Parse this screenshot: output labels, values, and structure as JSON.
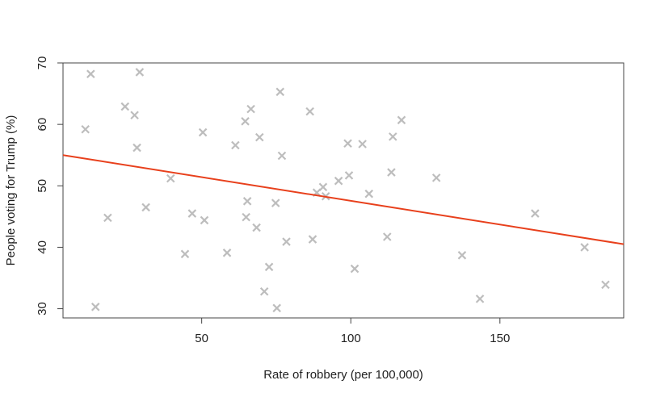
{
  "chart_data": {
    "type": "scatter",
    "xlabel": "Rate of robbery (per 100,000)",
    "ylabel": "People voting for Trump (%)",
    "xlim": [
      3.5,
      191.5
    ],
    "ylim": [
      28.5,
      70
    ],
    "x_ticks": [
      50,
      100,
      150
    ],
    "y_ticks": [
      30,
      40,
      50,
      60,
      70
    ],
    "grid": false,
    "marker": "x",
    "point_color": "#bdbdbd",
    "line_color": "#e8401c",
    "points": [
      {
        "x": 11.0,
        "y": 59.2
      },
      {
        "x": 12.8,
        "y": 68.2
      },
      {
        "x": 14.4,
        "y": 30.3
      },
      {
        "x": 18.5,
        "y": 44.8
      },
      {
        "x": 24.3,
        "y": 62.9
      },
      {
        "x": 27.5,
        "y": 61.5
      },
      {
        "x": 28.3,
        "y": 56.2
      },
      {
        "x": 29.2,
        "y": 68.5
      },
      {
        "x": 31.3,
        "y": 46.5
      },
      {
        "x": 39.6,
        "y": 51.2
      },
      {
        "x": 44.4,
        "y": 38.9
      },
      {
        "x": 46.8,
        "y": 45.5
      },
      {
        "x": 50.4,
        "y": 58.7
      },
      {
        "x": 50.9,
        "y": 44.4
      },
      {
        "x": 58.5,
        "y": 39.1
      },
      {
        "x": 61.3,
        "y": 56.6
      },
      {
        "x": 64.6,
        "y": 60.5
      },
      {
        "x": 64.9,
        "y": 44.9
      },
      {
        "x": 65.3,
        "y": 47.5
      },
      {
        "x": 66.5,
        "y": 62.5
      },
      {
        "x": 68.4,
        "y": 43.2
      },
      {
        "x": 69.4,
        "y": 57.9
      },
      {
        "x": 71.0,
        "y": 32.8
      },
      {
        "x": 72.6,
        "y": 36.8
      },
      {
        "x": 74.8,
        "y": 47.2
      },
      {
        "x": 75.2,
        "y": 30.1
      },
      {
        "x": 76.3,
        "y": 65.3
      },
      {
        "x": 76.9,
        "y": 54.9
      },
      {
        "x": 78.4,
        "y": 40.9
      },
      {
        "x": 86.3,
        "y": 62.1
      },
      {
        "x": 87.2,
        "y": 41.3
      },
      {
        "x": 88.6,
        "y": 48.9
      },
      {
        "x": 90.7,
        "y": 49.8
      },
      {
        "x": 91.6,
        "y": 48.3
      },
      {
        "x": 95.9,
        "y": 50.8
      },
      {
        "x": 99.0,
        "y": 56.9
      },
      {
        "x": 99.4,
        "y": 51.7
      },
      {
        "x": 101.3,
        "y": 36.5
      },
      {
        "x": 103.9,
        "y": 56.8
      },
      {
        "x": 106.1,
        "y": 48.7
      },
      {
        "x": 112.2,
        "y": 41.7
      },
      {
        "x": 113.6,
        "y": 52.2
      },
      {
        "x": 114.1,
        "y": 58.0
      },
      {
        "x": 117.0,
        "y": 60.7
      },
      {
        "x": 128.7,
        "y": 51.3
      },
      {
        "x": 137.3,
        "y": 38.7
      },
      {
        "x": 143.3,
        "y": 31.6
      },
      {
        "x": 161.8,
        "y": 45.5
      },
      {
        "x": 178.4,
        "y": 40.0
      },
      {
        "x": 185.4,
        "y": 33.9
      }
    ],
    "trendline": {
      "x": [
        3.5,
        191.5
      ],
      "y": [
        55.0,
        40.5
      ]
    }
  }
}
